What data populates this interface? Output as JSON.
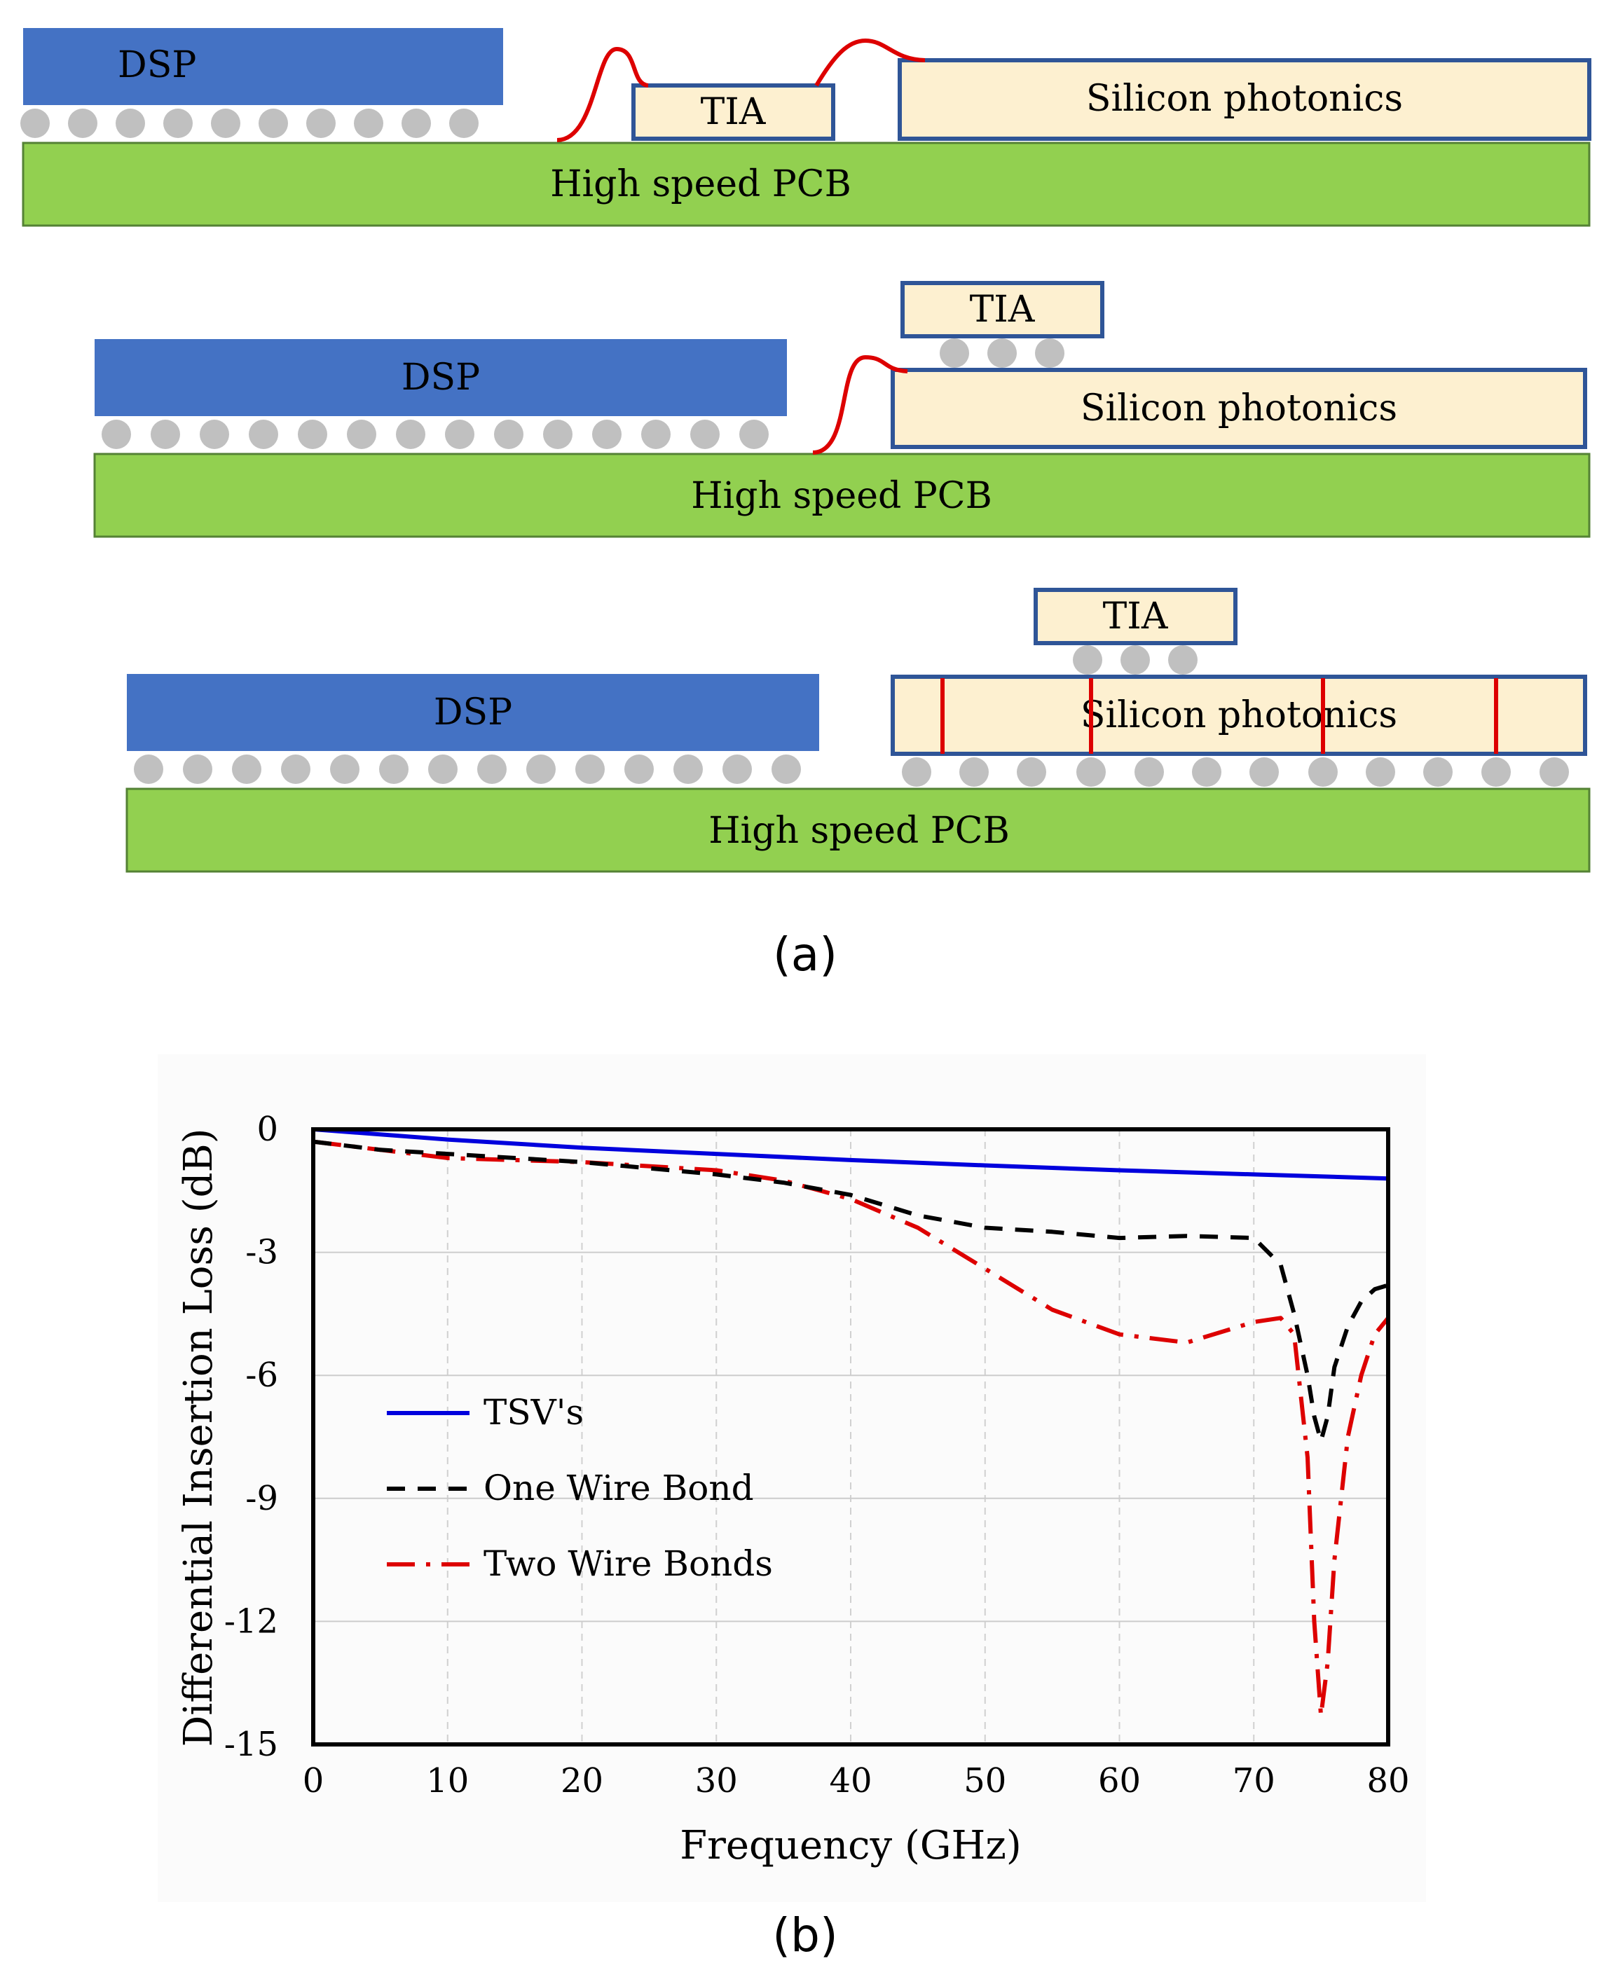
{
  "figure_a": {
    "caption": "(a)",
    "colors": {
      "dsp": "#4472c4",
      "pcb": "#92d050",
      "chip_fill": "#fdf0d0",
      "chip_border": "#2f5597",
      "bump": "#c0c0c0",
      "wire": "#dd0000"
    },
    "config1": {
      "dsp_label": "DSP",
      "tia_label": "TIA",
      "si_label": "Silicon photonics",
      "pcb_label": "High speed PCB"
    },
    "config2": {
      "dsp_label": "DSP",
      "tia_label": "TIA",
      "si_label": "Silicon photonics",
      "pcb_label": "High speed PCB"
    },
    "config3": {
      "dsp_label": "DSP",
      "tia_label": "TIA",
      "si_label": "Silicon photonics",
      "pcb_label": "High speed PCB"
    }
  },
  "figure_b": {
    "caption": "(b)"
  },
  "chart_data": {
    "type": "line",
    "xlabel": "Frequency (GHz)",
    "ylabel": "Differential Insertion Loss (dB)",
    "xlim": [
      0,
      80
    ],
    "ylim": [
      -15,
      0
    ],
    "xticks": [
      "0",
      "10",
      "20",
      "30",
      "40",
      "50",
      "60",
      "70",
      "80"
    ],
    "yticks": [
      "0",
      "-3",
      "-6",
      "-9",
      "-12",
      "-15"
    ],
    "grid": true,
    "legend_position": "left-middle",
    "series": [
      {
        "name": "TSV's",
        "color": "#0000dd",
        "dash": "solid",
        "x": [
          0,
          10,
          20,
          30,
          40,
          50,
          60,
          70,
          80
        ],
        "y": [
          0,
          -0.25,
          -0.45,
          -0.6,
          -0.75,
          -0.88,
          -1.0,
          -1.1,
          -1.2
        ]
      },
      {
        "name": "One Wire Bond",
        "color": "#000000",
        "dash": "dashed",
        "x": [
          0,
          5,
          10,
          20,
          30,
          35,
          40,
          45,
          50,
          55,
          60,
          65,
          70,
          72,
          73,
          74,
          74.5,
          75,
          75.5,
          76,
          77,
          78,
          79,
          80
        ],
        "y": [
          -0.3,
          -0.5,
          -0.6,
          -0.8,
          -1.1,
          -1.3,
          -1.6,
          -2.1,
          -2.4,
          -2.5,
          -2.65,
          -2.6,
          -2.65,
          -3.3,
          -4.5,
          -6.0,
          -7.0,
          -7.6,
          -7.0,
          -5.8,
          -4.8,
          -4.2,
          -3.9,
          -3.8
        ]
      },
      {
        "name": "Two Wire Bonds",
        "color": "#dd0000",
        "dash": "dash-dot",
        "x": [
          0,
          5,
          10,
          20,
          30,
          35,
          40,
          45,
          50,
          55,
          60,
          65,
          70,
          72,
          73,
          74,
          74.5,
          75,
          75.5,
          76,
          77,
          78,
          79,
          80
        ],
        "y": [
          -0.3,
          -0.5,
          -0.7,
          -0.8,
          -1.0,
          -1.25,
          -1.7,
          -2.4,
          -3.4,
          -4.4,
          -5.0,
          -5.2,
          -4.7,
          -4.6,
          -5.0,
          -8.0,
          -12.0,
          -14.3,
          -13.0,
          -10.5,
          -7.5,
          -6.0,
          -5.0,
          -4.6
        ]
      }
    ]
  }
}
